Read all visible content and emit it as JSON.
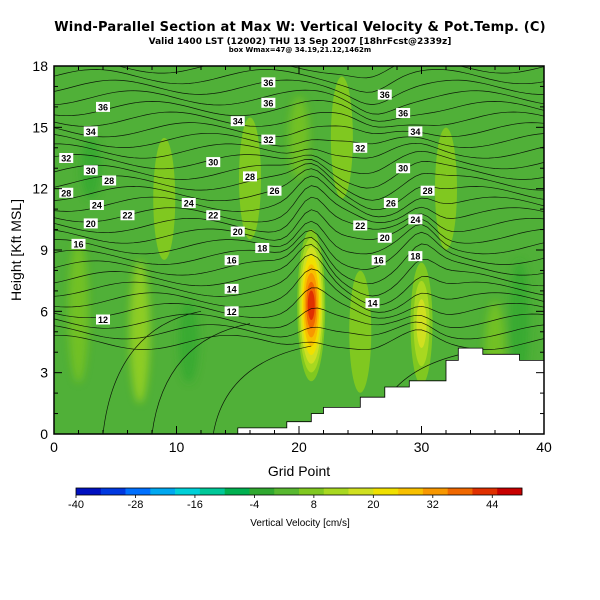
{
  "header": {
    "title": "Wind-Parallel Section at Max W: Vertical Velocity & Pot.Temp. (C)",
    "subtitle": "Valid 1400 LST (12002) THU 13 Sep 2007 [18hrFcst@2339z]",
    "box_info": "box Wmax=47@ 34.19,21.12,1462m"
  },
  "chart_data": {
    "type": "heatmap",
    "xlabel": "Grid Point",
    "ylabel": "Height [Kft MSL]",
    "xlim": [
      0,
      40
    ],
    "ylim": [
      0,
      18
    ],
    "x_ticks": [
      0,
      10,
      20,
      30,
      40
    ],
    "y_ticks": [
      0,
      3,
      6,
      9,
      12,
      15,
      18
    ],
    "colorbar": {
      "label": "Vertical Velocity [cm/s]",
      "ticks": [
        -40,
        -28,
        -16,
        -4,
        8,
        20,
        32,
        44
      ],
      "range": [
        -40,
        50
      ],
      "colors": [
        "#0010c0",
        "#0038e0",
        "#0070ff",
        "#00a8f0",
        "#00d0d8",
        "#00c898",
        "#00b050",
        "#30a830",
        "#58b830",
        "#80c820",
        "#a8d820",
        "#d0e020",
        "#f0e000",
        "#f8c000",
        "#f89800",
        "#f06800",
        "#e03000",
        "#c80000"
      ]
    },
    "velocity_max": {
      "value": 47,
      "x": 21.12,
      "height_m": 1462
    },
    "updrafts": [
      {
        "x": 21,
        "y": 6.3,
        "peak": 47
      },
      {
        "x": 30,
        "y": 5.4,
        "peak": 22
      },
      {
        "x": 14,
        "y": 4.5,
        "peak": 7
      },
      {
        "x": 25,
        "y": 5.0,
        "peak": 10
      },
      {
        "x": 9,
        "y": 11.5,
        "peak": 9
      },
      {
        "x": 16,
        "y": 12.5,
        "peak": 8
      },
      {
        "x": 23.5,
        "y": 14.5,
        "peak": 9
      },
      {
        "x": 32,
        "y": 12.0,
        "peak": 8
      },
      {
        "x": 5,
        "y": 15.5,
        "peak": 6
      }
    ],
    "terrain": [
      [
        0,
        0
      ],
      [
        15,
        0
      ],
      [
        15,
        0.3
      ],
      [
        19,
        0.3
      ],
      [
        19,
        0.6
      ],
      [
        21,
        0.6
      ],
      [
        21,
        1.0
      ],
      [
        22,
        1.0
      ],
      [
        22,
        1.3
      ],
      [
        25,
        1.3
      ],
      [
        25,
        1.8
      ],
      [
        27,
        1.8
      ],
      [
        27,
        2.3
      ],
      [
        29,
        2.3
      ],
      [
        29,
        2.6
      ],
      [
        32,
        2.6
      ],
      [
        32,
        3.6
      ],
      [
        33,
        3.6
      ],
      [
        33,
        4.2
      ],
      [
        35,
        4.2
      ],
      [
        35,
        3.9
      ],
      [
        38,
        3.9
      ],
      [
        38,
        3.6
      ],
      [
        40,
        3.6
      ],
      [
        40,
        0
      ]
    ],
    "isentrope_labels": [
      {
        "text": "36",
        "x": 17.5,
        "y": 17.2
      },
      {
        "text": "36",
        "x": 17.5,
        "y": 16.2
      },
      {
        "text": "36",
        "x": 27,
        "y": 16.6
      },
      {
        "text": "36",
        "x": 28.5,
        "y": 15.7
      },
      {
        "text": "36",
        "x": 4,
        "y": 16.0
      },
      {
        "text": "34",
        "x": 15,
        "y": 15.3
      },
      {
        "text": "34",
        "x": 3,
        "y": 14.8
      },
      {
        "text": "34",
        "x": 29.5,
        "y": 14.8
      },
      {
        "text": "32",
        "x": 17.5,
        "y": 14.4
      },
      {
        "text": "32",
        "x": 1,
        "y": 13.5
      },
      {
        "text": "32",
        "x": 25,
        "y": 14.0
      },
      {
        "text": "30",
        "x": 13,
        "y": 13.3
      },
      {
        "text": "30",
        "x": 3,
        "y": 12.9
      },
      {
        "text": "30",
        "x": 28.5,
        "y": 13.0
      },
      {
        "text": "28",
        "x": 16,
        "y": 12.6
      },
      {
        "text": "28",
        "x": 4.5,
        "y": 12.4
      },
      {
        "text": "28",
        "x": 1,
        "y": 11.8
      },
      {
        "text": "28",
        "x": 30.5,
        "y": 11.9
      },
      {
        "text": "26",
        "x": 18,
        "y": 11.9
      },
      {
        "text": "26",
        "x": 27.5,
        "y": 11.3
      },
      {
        "text": "24",
        "x": 3.5,
        "y": 11.2
      },
      {
        "text": "24",
        "x": 11,
        "y": 11.3
      },
      {
        "text": "24",
        "x": 29.5,
        "y": 10.5
      },
      {
        "text": "22",
        "x": 6,
        "y": 10.7
      },
      {
        "text": "22",
        "x": 13,
        "y": 10.7
      },
      {
        "text": "22",
        "x": 25,
        "y": 10.2
      },
      {
        "text": "20",
        "x": 3,
        "y": 10.3
      },
      {
        "text": "20",
        "x": 15,
        "y": 9.9
      },
      {
        "text": "20",
        "x": 27,
        "y": 9.6
      },
      {
        "text": "18",
        "x": 17,
        "y": 9.1
      },
      {
        "text": "18",
        "x": 29.5,
        "y": 8.7
      },
      {
        "text": "16",
        "x": 2,
        "y": 9.3
      },
      {
        "text": "16",
        "x": 14.5,
        "y": 8.5
      },
      {
        "text": "16",
        "x": 26.5,
        "y": 8.5
      },
      {
        "text": "14",
        "x": 14.5,
        "y": 7.1
      },
      {
        "text": "14",
        "x": 26,
        "y": 6.4
      },
      {
        "text": "12",
        "x": 4,
        "y": 5.6
      },
      {
        "text": "12",
        "x": 14.5,
        "y": 6.0
      }
    ]
  }
}
